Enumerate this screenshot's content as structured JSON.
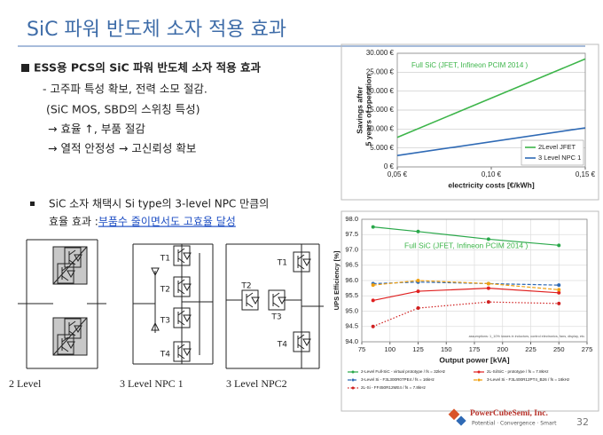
{
  "title": "SiC 파워 반도체 소자 적용 효과",
  "section1": {
    "heading": "ESS용 PCS의 SiC 파워 반도체 소자 적용 효과",
    "lines": [
      "- 고주파 특성 확보, 전력 소모 절감.",
      "(SiC MOS, SBD의 스위칭 특성)",
      "→ 효율 ↑, 부품 절감",
      "→ 열적 안정성 → 고신뢰성 확보"
    ]
  },
  "section2": {
    "line1": "SiC 소자 채택시 Si type의 3-level NPC 만큼의",
    "line2": "효율 효과 : ",
    "highlight": "부품수 줄이면서도 고효율 달성"
  },
  "diagrams": [
    {
      "label": "2 Level"
    },
    {
      "label": "3 Level NPC 1",
      "switches": [
        "T1",
        "T2",
        "T3",
        "T4"
      ]
    },
    {
      "label": "3 Level NPC2",
      "switches": [
        "T1",
        "T2",
        "T3",
        "T4"
      ]
    }
  ],
  "footer": {
    "company": "PowerCubeSemi, Inc.",
    "tagline": "Potential · Convergence · Smart",
    "page": "32"
  },
  "chart_data": [
    {
      "type": "line",
      "annotation": "Full SiC (JFET, Infineon PCIM 2014 )",
      "ylabel": [
        "Savings after",
        "5 years of operation"
      ],
      "xlabel": "electricity costs [€/kWh]",
      "x": [
        0.05,
        0.15
      ],
      "xlim": [
        0.05,
        0.15
      ],
      "xticks": [
        {
          "value": 0.05,
          "label": "0,05 €"
        },
        {
          "value": 0.1,
          "label": "0,10 €"
        },
        {
          "value": 0.15,
          "label": "0,15 €"
        }
      ],
      "ylim": [
        0,
        30000
      ],
      "yticks": [
        {
          "value": 0,
          "label": "0 €"
        },
        {
          "value": 5000,
          "label": "5.000 €"
        },
        {
          "value": 10000,
          "label": "10.000 €"
        },
        {
          "value": 15000,
          "label": "15.000 €"
        },
        {
          "value": 20000,
          "label": "20.000 €"
        },
        {
          "value": 25000,
          "label": "25.000 €"
        },
        {
          "value": 30000,
          "label": "30.000 €"
        }
      ],
      "grid": true,
      "legend": "lower right",
      "series": [
        {
          "name": "2Level JFET",
          "color": "#3db54a",
          "style": "solid",
          "values": [
            7800,
            28500
          ]
        },
        {
          "name": "3 Level NPC 1",
          "color": "#2f6ab5",
          "style": "solid",
          "values": [
            3000,
            10300
          ]
        }
      ]
    },
    {
      "type": "line",
      "annotation": "Full SiC (JFET, Infineon PCIM 2014 )",
      "ylabel": "UPS Efficiency [%]",
      "xlabel": "Output power [kVA]",
      "note": "assumptions: 1_10% losses in inductors, control electronics, fans, display, etc.",
      "x": [
        85,
        125,
        187.5,
        250
      ],
      "xlim": [
        75,
        275
      ],
      "xticks": [
        75,
        100,
        125,
        150,
        175,
        200,
        225,
        250,
        275
      ],
      "ylim": [
        94,
        98
      ],
      "yticks": [
        {
          "value": 94,
          "label": "94.0"
        },
        94.5,
        {
          "value": 95,
          "label": "95.0"
        },
        95.5,
        {
          "value": 96,
          "label": "96.0"
        },
        96.5,
        {
          "value": 97,
          "label": "97.0"
        },
        97.5,
        {
          "value": 98,
          "label": "98.0"
        }
      ],
      "grid": true,
      "legend": "bottom",
      "series": [
        {
          "name": "2-Level Full-SiC - virtual prototype / fs = 32kHz",
          "color": "#2aa84a",
          "style": "solid",
          "values": [
            97.75,
            97.6,
            97.35,
            97.15
          ]
        },
        {
          "name": "2L-Si/SiC - prototype / fs = 7.8kHz",
          "color": "#e02020",
          "style": "solid",
          "values": [
            95.35,
            95.65,
            95.75,
            95.6
          ]
        },
        {
          "name": "3-Level Si - F3L300R07PE4 / fs = 16kHz",
          "color": "#2f6ab5",
          "style": "dashed",
          "values": [
            95.9,
            95.95,
            95.9,
            95.85
          ]
        },
        {
          "name": "3-Level Si - F3L400R12PT4_B26 / fs = 16kHz",
          "color": "#f0a010",
          "style": "dashed",
          "values": [
            95.85,
            96.0,
            95.9,
            95.7
          ]
        },
        {
          "name": "2L-Si - FF450R12ME4 / fs = 7.8kHz",
          "color": "#d02020",
          "style": "dotted",
          "values": [
            94.5,
            95.1,
            95.3,
            95.25
          ]
        }
      ]
    }
  ]
}
